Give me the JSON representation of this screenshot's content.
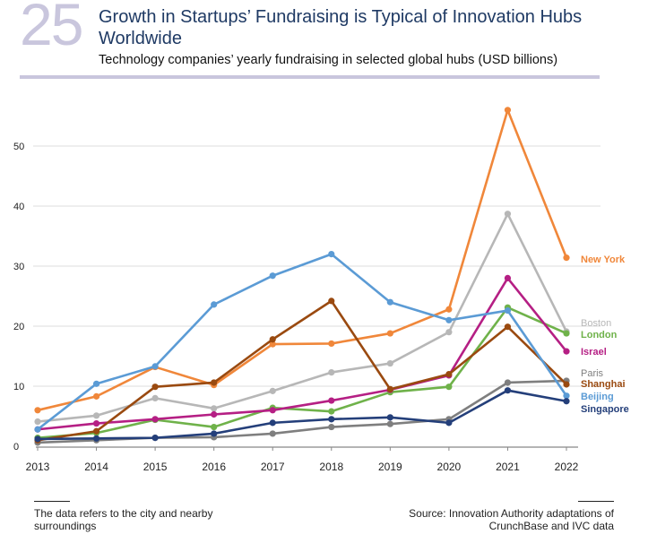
{
  "header": {
    "figure_number": "25",
    "title": "Growth in Startups’ Fundraising is Typical of Innovation Hubs Worldwide",
    "subtitle": "Technology companies’ yearly fundraising in selected global hubs (USD billions)"
  },
  "footer": {
    "note": "The data refers to the city and nearby surroundings",
    "source": "Source: Innovation Authority adaptations of CrunchBase and IVC data"
  },
  "chart_data": {
    "type": "line",
    "title": "Technology companies’ yearly fundraising in selected global hubs (USD billions)",
    "xlabel": "",
    "ylabel": "",
    "x": [
      "2013",
      "2014",
      "2015",
      "2016",
      "2017",
      "2018",
      "2019",
      "2020",
      "2021",
      "2022"
    ],
    "ylim": [
      0,
      60
    ],
    "yticks": [
      0,
      10,
      20,
      30,
      40,
      50
    ],
    "grid": true,
    "legend": "right (labels at line ends)",
    "series": [
      {
        "name": "New York",
        "color": "#f0873a",
        "values": [
          6.0,
          8.3,
          13.2,
          10.2,
          17.0,
          17.1,
          18.8,
          22.8,
          56.0,
          31.4
        ]
      },
      {
        "name": "Boston",
        "color": "#b7b7b7",
        "values": [
          4.1,
          5.1,
          8.0,
          6.3,
          9.2,
          12.3,
          13.8,
          19.0,
          38.7,
          19.1
        ]
      },
      {
        "name": "London",
        "color": "#6fb24a",
        "values": [
          1.4,
          2.2,
          4.4,
          3.2,
          6.4,
          5.8,
          9.0,
          9.9,
          23.1,
          18.8
        ]
      },
      {
        "name": "Israel",
        "color": "#b51f84",
        "values": [
          2.8,
          3.8,
          4.5,
          5.3,
          6.0,
          7.6,
          9.4,
          11.8,
          28.0,
          15.8
        ]
      },
      {
        "name": "Paris",
        "color": "#7f7f7f",
        "values": [
          0.6,
          1.0,
          1.4,
          1.5,
          2.1,
          3.2,
          3.7,
          4.5,
          10.6,
          10.9
        ]
      },
      {
        "name": "Shanghai",
        "color": "#9a4a10",
        "values": [
          1.0,
          2.5,
          9.9,
          10.6,
          17.8,
          24.2,
          9.5,
          12.0,
          19.9,
          10.3
        ]
      },
      {
        "name": "Beijing",
        "color": "#5b9bd5",
        "values": [
          2.8,
          10.4,
          13.3,
          23.6,
          28.4,
          32.0,
          24.0,
          21.0,
          22.6,
          8.4
        ]
      },
      {
        "name": "Singapore",
        "color": "#243f7a",
        "values": [
          1.2,
          1.3,
          1.4,
          2.1,
          3.9,
          4.5,
          4.8,
          3.9,
          9.3,
          7.5
        ]
      }
    ]
  }
}
